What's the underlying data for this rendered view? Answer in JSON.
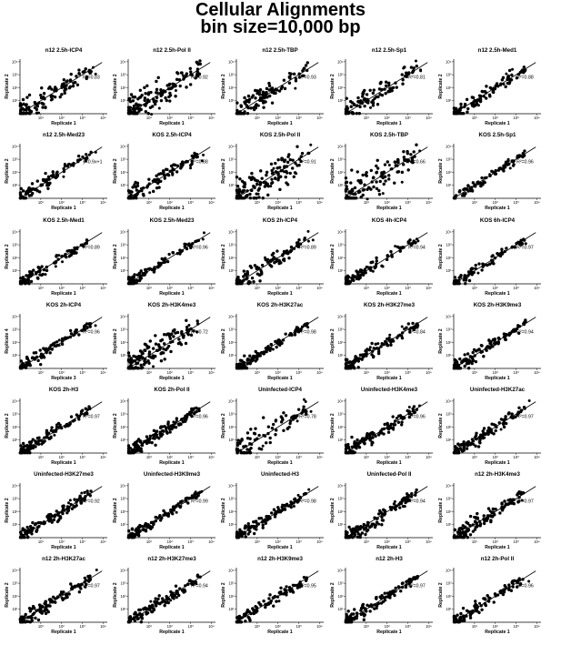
{
  "title_line1": "Cellular Alignments",
  "title_line2": "bin size=10,000 bp",
  "chart_data": {
    "type": "scatter",
    "tick_labels": [
      "10¹",
      "10²",
      "10³",
      "10⁴"
    ],
    "panels": [
      {
        "title": "n12 2.5h-ICP4",
        "xlabel": "Replicate 1",
        "ylabel": "Replicate 2",
        "annotation": "R²=0.83",
        "spread": 0.25,
        "density": 0.8
      },
      {
        "title": "n12 2.5h-Pol II",
        "xlabel": "Replicate 1",
        "ylabel": "Replicate 2",
        "annotation": "R²=0.92",
        "spread": 0.35,
        "density": 1.0
      },
      {
        "title": "n12 2.5h-TBP",
        "xlabel": "Replicate 1",
        "ylabel": "Replicate 2",
        "annotation": "R²=0.93",
        "spread": 0.3,
        "density": 0.8
      },
      {
        "title": "n12 2.5h-Sp1",
        "xlabel": "Replicate 1",
        "ylabel": "Replicate 2",
        "annotation": "R²=0.81",
        "spread": 0.25,
        "density": 0.7
      },
      {
        "title": "n12 2.5h-Med1",
        "xlabel": "Replicate 1",
        "ylabel": "Replicate 2",
        "annotation": "R²=0.88",
        "spread": 0.18,
        "density": 0.7
      },
      {
        "title": "n12 2.5h-Med23",
        "xlabel": "Replicate 1",
        "ylabel": "Replicate 2",
        "annotation": "y=0.9x+1",
        "spread": 0.15,
        "density": 0.6
      },
      {
        "title": "KOS 2.5h-ICP4",
        "xlabel": "Replicate 1",
        "ylabel": "Replicate 2",
        "annotation": "R²=0.88",
        "spread": 0.2,
        "density": 0.7
      },
      {
        "title": "KOS 2.5h-Pol II",
        "xlabel": "Replicate 1",
        "ylabel": "Replicate 2",
        "annotation": "R²=0.91",
        "spread": 0.4,
        "density": 1.0
      },
      {
        "title": "KOS 2.5h-TBP",
        "xlabel": "Replicate 1",
        "ylabel": "Replicate 2",
        "annotation": "R²=0.66",
        "spread": 0.45,
        "density": 0.9
      },
      {
        "title": "KOS 2.5h-Sp1",
        "xlabel": "Replicate 1",
        "ylabel": "Replicate 2",
        "annotation": "R²=0.96",
        "spread": 0.12,
        "density": 0.6
      },
      {
        "title": "KOS 2.5h-Med1",
        "xlabel": "Replicate 1",
        "ylabel": "Replicate 2",
        "annotation": "R²=0.89",
        "spread": 0.15,
        "density": 0.6
      },
      {
        "title": "KOS 2.5h-Med23",
        "xlabel": "Replicate 1",
        "ylabel": "Replicate 2",
        "annotation": "R²=0.96",
        "spread": 0.12,
        "density": 0.6
      },
      {
        "title": "KOS 2h-ICP4",
        "xlabel": "Replicate 1",
        "ylabel": "Replicate 2",
        "annotation": "R²=0.89",
        "spread": 0.2,
        "density": 0.7
      },
      {
        "title": "KOS 4h-ICP4",
        "xlabel": "Replicate 1",
        "ylabel": "Replicate 2",
        "annotation": "R²=0.94",
        "spread": 0.15,
        "density": 0.6
      },
      {
        "title": "KOS 6h-ICP4",
        "xlabel": "Replicate 1",
        "ylabel": "Replicate 2",
        "annotation": "R²=0.97",
        "spread": 0.12,
        "density": 0.6
      },
      {
        "title": "KOS 2h-ICP4",
        "xlabel": "Replicate 3",
        "ylabel": "Replicate 4",
        "annotation": "R²=0.96",
        "spread": 0.14,
        "density": 0.6
      },
      {
        "title": "KOS 2h-H3K4me3",
        "xlabel": "Replicate 1",
        "ylabel": "Replicate 2",
        "annotation": "R²=0.72",
        "spread": 0.35,
        "density": 1.0
      },
      {
        "title": "KOS 2h-H3K27ac",
        "xlabel": "Replicate 1",
        "ylabel": "Replicate 2",
        "annotation": "R²=0.98",
        "spread": 0.12,
        "density": 0.8
      },
      {
        "title": "KOS 2h-H3K27me3",
        "xlabel": "Replicate 1",
        "ylabel": "Replicate 2",
        "annotation": "R²=0.84",
        "spread": 0.15,
        "density": 0.8
      },
      {
        "title": "KOS 2h-H3K9me3",
        "xlabel": "Replicate 1",
        "ylabel": "Replicate 2",
        "annotation": "R²=0.94",
        "spread": 0.15,
        "density": 0.8
      },
      {
        "title": "KOS 2h-H3",
        "xlabel": "Replicate 1",
        "ylabel": "Replicate 2",
        "annotation": "R²=0.97",
        "spread": 0.15,
        "density": 0.8
      },
      {
        "title": "KOS 2h-Pol II",
        "xlabel": "Replicate 1",
        "ylabel": "Replicate 2",
        "annotation": "R²=0.96",
        "spread": 0.18,
        "density": 0.9
      },
      {
        "title": "Uninfected-ICP4",
        "xlabel": "Replicate 1",
        "ylabel": "Replicate 2",
        "annotation": "R²=0.78",
        "spread": 0.35,
        "density": 0.6
      },
      {
        "title": "Uninfected-H3K4me3",
        "xlabel": "Replicate 1",
        "ylabel": "Replicate 2",
        "annotation": "R²=0.96",
        "spread": 0.2,
        "density": 0.9
      },
      {
        "title": "Uninfected-H3K27ac",
        "xlabel": "Replicate 1",
        "ylabel": "Replicate 2",
        "annotation": "R²=0.97",
        "spread": 0.15,
        "density": 0.8
      },
      {
        "title": "Uninfected-H3K27me3",
        "xlabel": "Replicate 1",
        "ylabel": "Replicate 2",
        "annotation": "R²=0.92",
        "spread": 0.18,
        "density": 0.8
      },
      {
        "title": "Uninfected-H3K9me3",
        "xlabel": "Replicate 1",
        "ylabel": "Replicate 2",
        "annotation": "R²=0.99",
        "spread": 0.12,
        "density": 0.8
      },
      {
        "title": "Uninfected-H3",
        "xlabel": "Replicate 1",
        "ylabel": "Replicate 2",
        "annotation": "R²=0.98",
        "spread": 0.12,
        "density": 0.8
      },
      {
        "title": "Uninfected-Pol II",
        "xlabel": "Replicate 1",
        "ylabel": "Replicate 2",
        "annotation": "R²=0.94",
        "spread": 0.18,
        "density": 0.9
      },
      {
        "title": "n12 2h-H3K4me3",
        "xlabel": "Replicate 1",
        "ylabel": "Replicate 2",
        "annotation": "R²=0.97",
        "spread": 0.18,
        "density": 0.9
      },
      {
        "title": "n12 2h-H3K27ac",
        "xlabel": "Replicate 1",
        "ylabel": "Replicate 2",
        "annotation": "R²=0.97",
        "spread": 0.18,
        "density": 0.8
      },
      {
        "title": "n12 2h-H3K27me3",
        "xlabel": "Replicate 1",
        "ylabel": "Replicate 2",
        "annotation": "R²=0.94",
        "spread": 0.18,
        "density": 0.8
      },
      {
        "title": "n12 2h-H3K9me3",
        "xlabel": "Replicate 1",
        "ylabel": "Replicate 2",
        "annotation": "R²=0.95",
        "spread": 0.15,
        "density": 0.7
      },
      {
        "title": "n12 2h-H3",
        "xlabel": "Replicate 1",
        "ylabel": "Replicate 2",
        "annotation": "R²=0.97",
        "spread": 0.15,
        "density": 0.8
      },
      {
        "title": "n12 2h-Pol II",
        "xlabel": "Replicate 1",
        "ylabel": "Replicate 2",
        "annotation": "R²=0.96",
        "spread": 0.15,
        "density": 0.7
      }
    ]
  }
}
